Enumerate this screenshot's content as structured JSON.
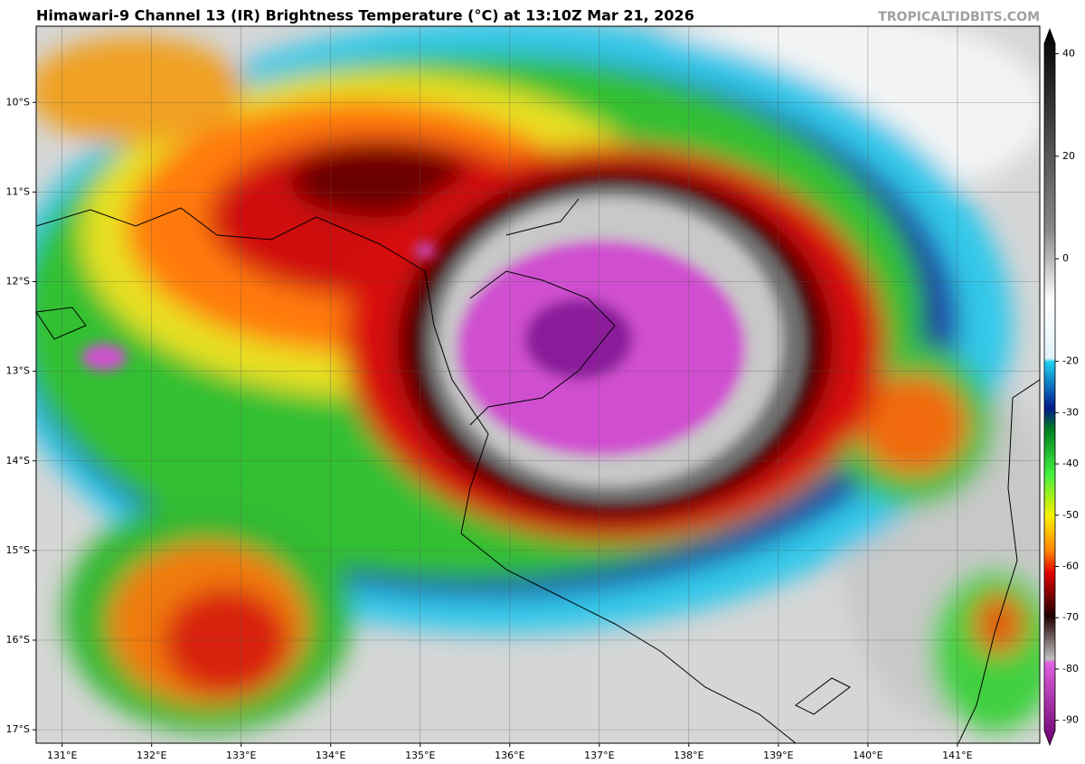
{
  "title": "Himawari-9 Channel 13 (IR) Brightness Temperature (°C) at 13:10Z Mar 21, 2026",
  "watermark": "TROPICALTIDBITS.COM",
  "map": {
    "lon_range": [
      130.71,
      141.92
    ],
    "lat_range": [
      -9.15,
      -17.15
    ],
    "lon_ticks": [
      {
        "value": 131,
        "label": "131°E"
      },
      {
        "value": 132,
        "label": "132°E"
      },
      {
        "value": 133,
        "label": "133°E"
      },
      {
        "value": 134,
        "label": "134°E"
      },
      {
        "value": 135,
        "label": "135°E"
      },
      {
        "value": 136,
        "label": "136°E"
      },
      {
        "value": 137,
        "label": "137°E"
      },
      {
        "value": 138,
        "label": "138°E"
      },
      {
        "value": 139,
        "label": "139°E"
      },
      {
        "value": 140,
        "label": "140°E"
      },
      {
        "value": 141,
        "label": "141°E"
      }
    ],
    "lat_ticks": [
      {
        "value": -10,
        "label": "10°S"
      },
      {
        "value": -11,
        "label": "11°S"
      },
      {
        "value": -12,
        "label": "12°S"
      },
      {
        "value": -13,
        "label": "13°S"
      },
      {
        "value": -14,
        "label": "14°S"
      },
      {
        "value": -15,
        "label": "15°S"
      },
      {
        "value": -16,
        "label": "16°S"
      },
      {
        "value": -17,
        "label": "17°S"
      }
    ],
    "grid": true
  },
  "colorbar": {
    "lim": [
      -92,
      42
    ],
    "ticks": [
      40,
      20,
      0,
      -20,
      -30,
      -40,
      -50,
      -60,
      -70,
      -80,
      -90
    ]
  }
}
